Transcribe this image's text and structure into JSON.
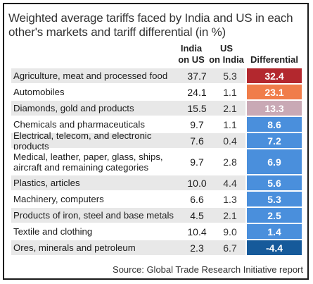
{
  "title": "Weighted average tariffs faced by India and US in each other's markets and tariff differential (in %)",
  "headers": {
    "india": "India on US",
    "us": "US on India",
    "diff": "Differential"
  },
  "source": "Source: Global Trade Research Initiative report",
  "colors": {
    "row_shade": "#e8e8e8",
    "high": "#b3282e",
    "orange": "#f07d4a",
    "mid": "#c9a9b5",
    "blue": "#4a8fdc",
    "dark": "#165a9a"
  },
  "chart_data": {
    "type": "table",
    "title": "Weighted average tariffs faced by India and US in each other's markets and tariff differential (in %)",
    "columns": [
      "India on US",
      "US on India",
      "Differential"
    ],
    "rows": [
      {
        "category": "Agriculture, meat and processed food",
        "india": "37.7",
        "us": "5.3",
        "diff": "32.4",
        "color": "#b3282e"
      },
      {
        "category": "Automobiles",
        "india": "24.1",
        "us": "1.1",
        "diff": "23.1",
        "color": "#f07d4a"
      },
      {
        "category": "Diamonds, gold and products",
        "india": "15.5",
        "us": "2.1",
        "diff": "13.3",
        "color": "#c9a9b5"
      },
      {
        "category": "Chemicals and pharmaceuticals",
        "india": "9.7",
        "us": "1.1",
        "diff": "8.6",
        "color": "#4a8fdc"
      },
      {
        "category": "Electrical, telecom, and electronic products",
        "india": "7.6",
        "us": "0.4",
        "diff": "7.2",
        "color": "#4a8fdc"
      },
      {
        "category": "Medical, leather, paper, glass, ships, aircraft and remaining categories",
        "india": "9.7",
        "us": "2.8",
        "diff": "6.9",
        "color": "#4a8fdc"
      },
      {
        "category": "Plastics, articles",
        "india": "10.0",
        "us": "4.4",
        "diff": "5.6",
        "color": "#4a8fdc"
      },
      {
        "category": "Machinery, computers",
        "india": "6.6",
        "us": "1.3",
        "diff": "5.3",
        "color": "#4a8fdc"
      },
      {
        "category": "Products of iron, steel and base metals",
        "india": "4.5",
        "us": "2.1",
        "diff": "2.5",
        "color": "#4a8fdc"
      },
      {
        "category": "Textile and clothing",
        "india": "10.4",
        "us": "9.0",
        "diff": "1.4",
        "color": "#4a8fdc"
      },
      {
        "category": "Ores, minerals and petroleum",
        "india": "2.3",
        "us": "6.7",
        "diff": "-4.4",
        "color": "#165a9a"
      }
    ]
  }
}
